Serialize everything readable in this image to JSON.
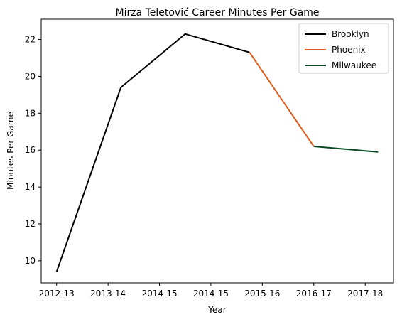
{
  "chart_data": {
    "type": "line",
    "title": "Mirza Teletović Career Minutes Per Game",
    "xlabel": "Year",
    "ylabel": "Minutes Per Game",
    "categories": [
      "2012-13",
      "2013-14",
      "2014-15",
      "2014-15",
      "2015-16",
      "2016-17",
      "2017-18"
    ],
    "ylim": [
      8.8,
      23.1
    ],
    "yticks": [
      10,
      12,
      14,
      16,
      18,
      20,
      22
    ],
    "grid": false,
    "legend_position": "top-right",
    "series": [
      {
        "name": "Brooklyn",
        "color": "#000000",
        "points": [
          [
            0,
            9.4
          ],
          [
            1.25,
            19.4
          ],
          [
            2.5,
            22.3
          ],
          [
            3.75,
            21.3
          ]
        ]
      },
      {
        "name": "Phoenix",
        "color": "#e05c1c",
        "points": [
          [
            3.75,
            21.3
          ],
          [
            5,
            16.2
          ]
        ]
      },
      {
        "name": "Milwaukee",
        "color": "#0b4a24",
        "points": [
          [
            5,
            16.2
          ],
          [
            6.25,
            15.9
          ]
        ]
      }
    ]
  }
}
